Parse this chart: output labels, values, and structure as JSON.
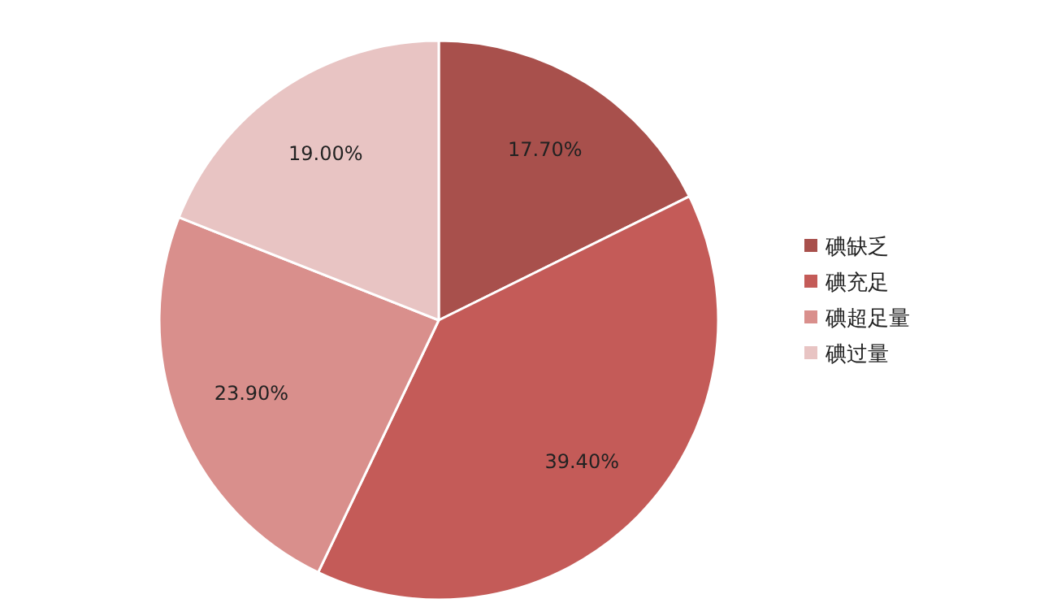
{
  "chart_data": {
    "type": "pie",
    "categories": [
      "碘缺乏",
      "碘充足",
      "碘超足量",
      "碘过量"
    ],
    "values": [
      17.7,
      39.4,
      23.9,
      19.0
    ],
    "value_labels": [
      "17.70%",
      "39.40%",
      "23.90%",
      "19.00%"
    ],
    "colors": [
      "#a8504c",
      "#c45b58",
      "#d98f8c",
      "#e8c4c3"
    ],
    "legend": "right"
  }
}
